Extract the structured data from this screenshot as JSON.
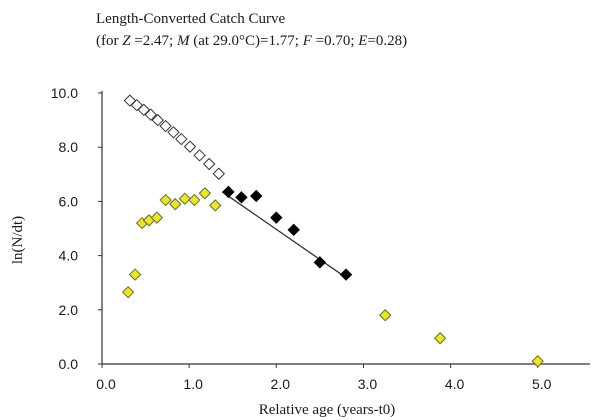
{
  "chart_data": {
    "type": "scatter",
    "title": "Length-Converted Catch Curve",
    "subtitle": {
      "prefix": "(for ",
      "z_label": "Z",
      "z_value": " =2.47; ",
      "m_label": "M",
      "m_value": " (at 29.0°C)=1.77; ",
      "f_label": "F",
      "f_value": " =0.70; ",
      "e_label": "E",
      "e_value": "=0.28)"
    },
    "xlabel": "Relative age (years-t0)",
    "ylabel": "ln(N/dt)",
    "xlim": [
      0,
      5.6
    ],
    "ylim": [
      0,
      10
    ],
    "x_ticks": [
      "0.0",
      "1.0",
      "2.0",
      "3.0",
      "4.0",
      "5.0"
    ],
    "y_ticks": [
      "0.0",
      "2.0",
      "4.0",
      "6.0",
      "8.0",
      "10.0"
    ],
    "colors": {
      "open": "#ffffff",
      "open_stroke": "#333333",
      "regression": "#000000",
      "unused": "#e8e630",
      "unused_stroke": "#6b6b2a",
      "line": "#333333",
      "axis": "#333333"
    },
    "series": [
      {
        "style": "open",
        "points": [
          [
            0.32,
            9.72
          ],
          [
            0.4,
            9.55
          ],
          [
            0.48,
            9.38
          ],
          [
            0.56,
            9.2
          ],
          [
            0.64,
            9.0
          ],
          [
            0.73,
            8.78
          ],
          [
            0.82,
            8.55
          ],
          [
            0.91,
            8.3
          ],
          [
            1.01,
            8.02
          ],
          [
            1.12,
            7.7
          ],
          [
            1.23,
            7.38
          ],
          [
            1.34,
            7.02
          ]
        ]
      },
      {
        "style": "regression",
        "points": [
          [
            1.45,
            6.35
          ],
          [
            1.6,
            6.15
          ],
          [
            1.77,
            6.2
          ],
          [
            2.0,
            5.4
          ],
          [
            2.2,
            4.95
          ],
          [
            2.5,
            3.75
          ],
          [
            2.8,
            3.3
          ]
        ]
      },
      {
        "style": "unused",
        "points": [
          [
            0.3,
            2.65
          ],
          [
            0.38,
            3.3
          ],
          [
            0.46,
            5.2
          ],
          [
            0.54,
            5.3
          ],
          [
            0.63,
            5.4
          ],
          [
            0.73,
            6.05
          ],
          [
            0.84,
            5.9
          ],
          [
            0.95,
            6.1
          ],
          [
            1.06,
            6.05
          ],
          [
            1.18,
            6.3
          ],
          [
            1.3,
            5.85
          ],
          [
            3.25,
            1.8
          ],
          [
            3.88,
            0.95
          ],
          [
            5.0,
            0.1
          ]
        ]
      }
    ],
    "regression_line": {
      "x": [
        1.38,
        2.75
      ],
      "y": [
        6.35,
        3.3
      ]
    }
  }
}
